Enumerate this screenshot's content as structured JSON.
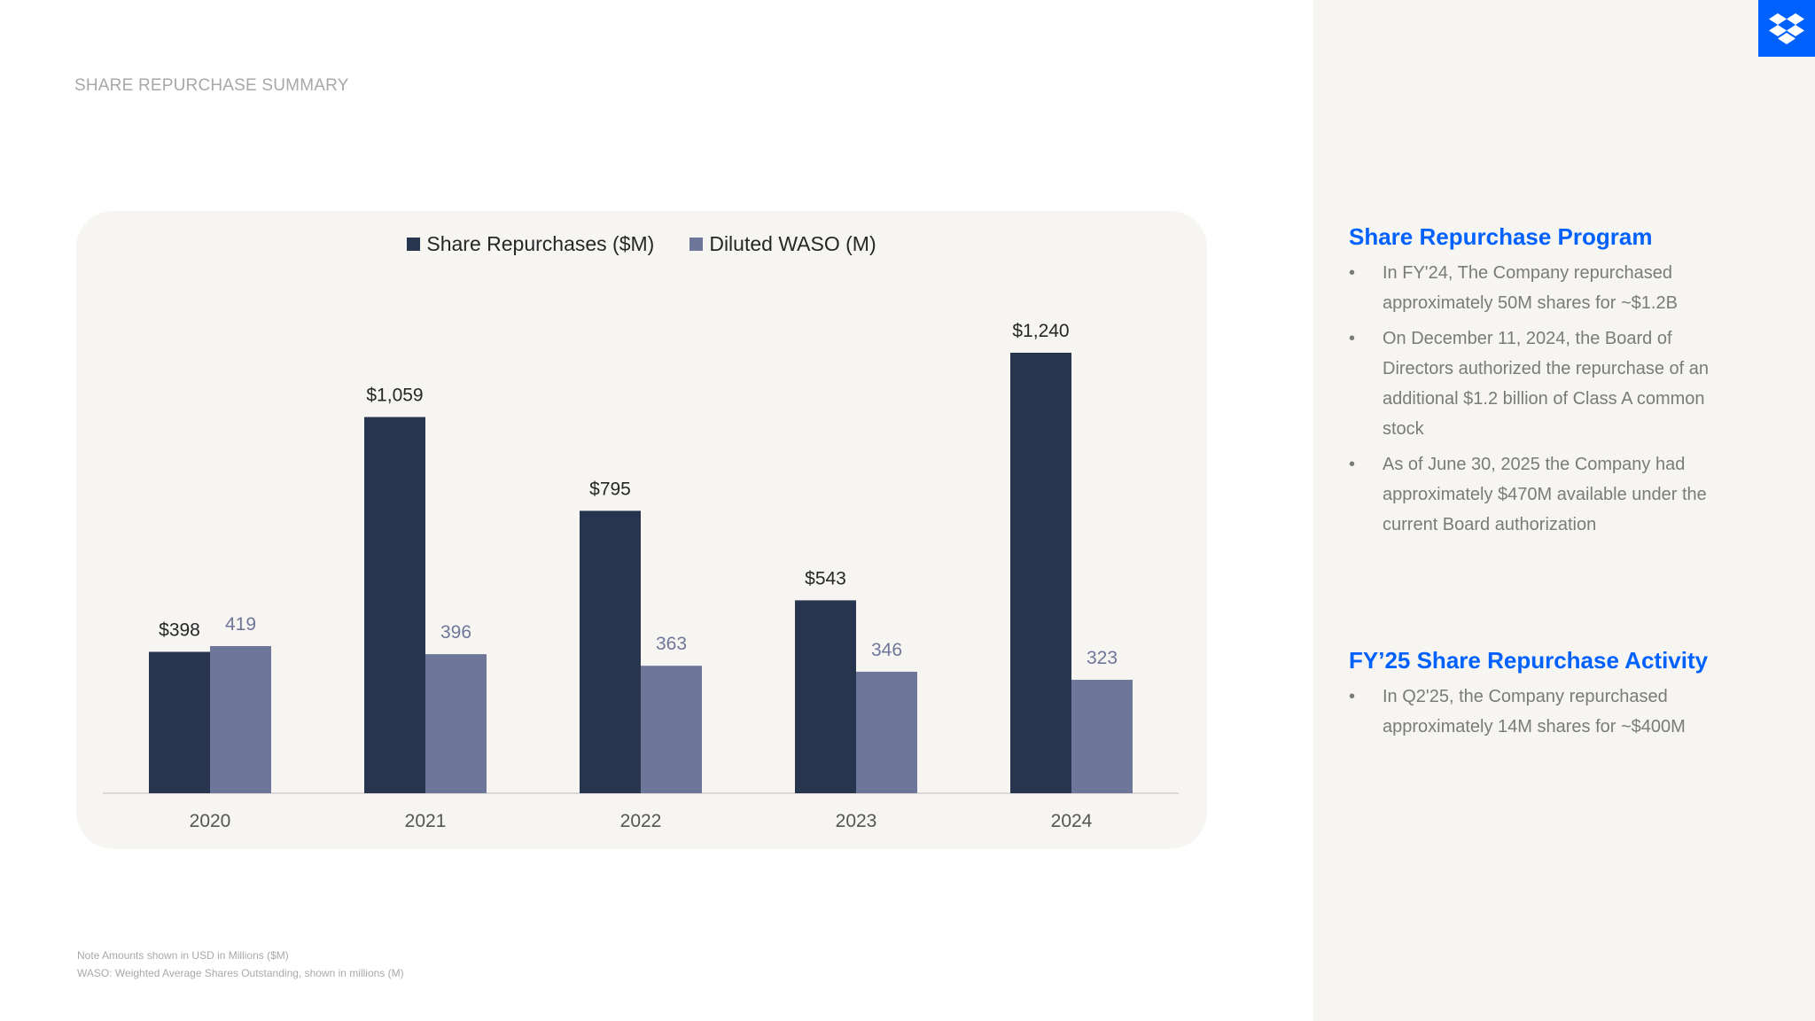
{
  "slide": {
    "title": "SHARE REPURCHASE SUMMARY",
    "footnote1": "Note Amounts shown in USD in Millions ($M)",
    "footnote2": "WASO: Weighted Average Shares Outstanding, shown in millions (M)",
    "logo_icon": "dropbox-logo-icon"
  },
  "chart_data": {
    "type": "bar",
    "categories": [
      "2020",
      "2021",
      "2022",
      "2023",
      "2024"
    ],
    "series": [
      {
        "name": "Share Repurchases ($M)",
        "values": [
          398,
          1059,
          795,
          543,
          1240
        ],
        "labels": [
          "$398",
          "$1,059",
          "$795",
          "$543",
          "$1,240"
        ],
        "color": "#27354f"
      },
      {
        "name": "Diluted WASO (M)",
        "values": [
          419,
          396,
          363,
          346,
          323
        ],
        "labels": [
          "419",
          "396",
          "363",
          "346",
          "323"
        ],
        "color": "#6e7799"
      }
    ],
    "legend": "top-center",
    "grid": false
  },
  "side": {
    "program": {
      "heading": "Share Repurchase Program",
      "bullets": [
        "In FY'24, The Company repurchased approximately 50M shares for ~$1.2B",
        "On December 11, 2024, the Board of Directors authorized the repurchase of an additional $1.2 billion of Class A common stock",
        "As of June 30, 2025 the Company had approximately $470M available under the current Board authorization"
      ]
    },
    "activity": {
      "heading": "FY’25 Share Repurchase Activity",
      "bullets": [
        "In Q2'25, the Company repurchased approximately 14M shares for ~$400M"
      ]
    }
  }
}
